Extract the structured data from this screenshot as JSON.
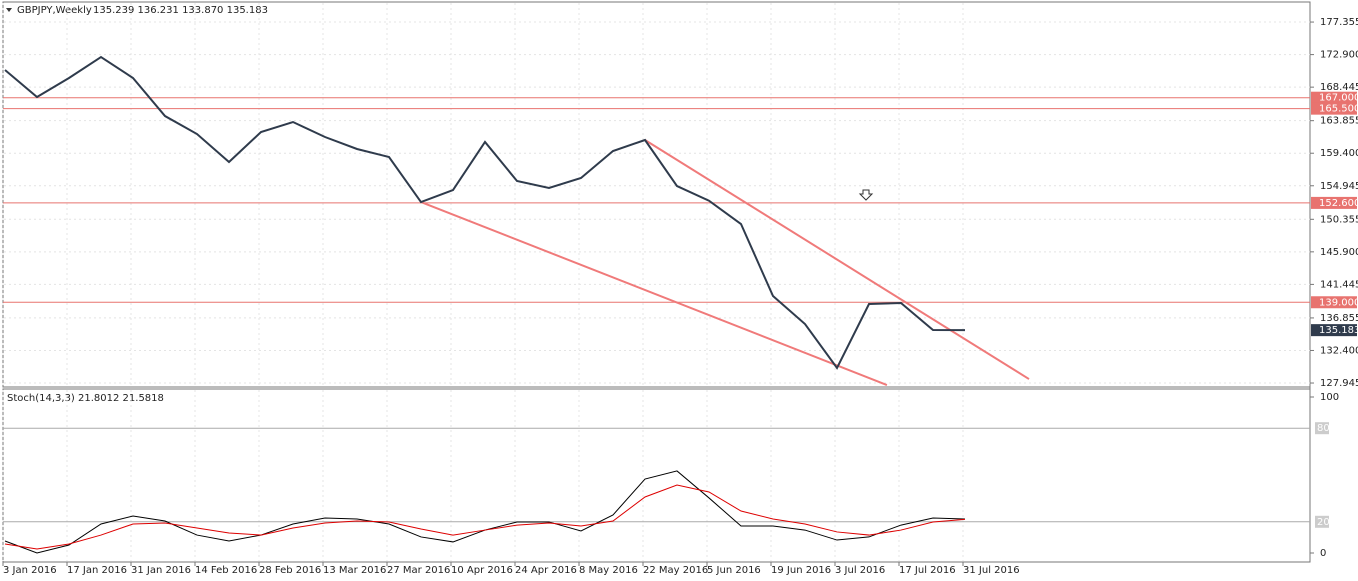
{
  "chart_data": [
    {
      "type": "line",
      "title": "GBPJPY,Weekly",
      "subtitle": "135.239 136.231 133.870 135.183",
      "categories": [
        "3 Jan 2016",
        null,
        "17 Jan 2016",
        null,
        "31 Jan 2016",
        null,
        "14 Feb 2016",
        null,
        "28 Feb 2016",
        null,
        "13 Mar 2016",
        null,
        "27 Mar 2016",
        null,
        "10 Apr 2016",
        null,
        "24 Apr 2016",
        null,
        "8 May 2016",
        null,
        "22 May 2016",
        null,
        "5 Jun 2016",
        null,
        "19 Jun 2016",
        null,
        "3 Jul 2016",
        null,
        "17 Jul 2016",
        null,
        "31 Jul 2016"
      ],
      "series": [
        {
          "color": "#2f3b4c",
          "values": [
            170.79,
            167.1,
            169.7,
            172.57,
            169.7,
            164.49,
            162.03,
            158.2,
            162.3,
            163.67,
            161.62,
            159.98,
            158.88,
            152.72,
            154.36,
            160.94,
            155.6,
            154.64,
            156.01,
            159.7,
            161.21,
            154.91,
            152.9,
            149.71,
            139.85,
            136.02,
            130.0,
            138.76,
            138.9,
            135.2,
            135.183
          ]
        }
      ],
      "ylim": [
        127.4,
        180.1
      ],
      "yticks": [
        177.355,
        {
          "value": 172.9,
          "label": "172.900"
        },
        168.445,
        163.855,
        {
          "value": 159.4,
          "label": "159.400"
        },
        154.945,
        150.355,
        {
          "value": 145.9,
          "label": "145.900"
        },
        141.445,
        136.855,
        {
          "value": 132.4,
          "label": "132.400"
        },
        127.945
      ],
      "levels": [
        {
          "value": 167,
          "label": "167.000"
        },
        {
          "value": 165.5,
          "label": "165.500"
        },
        {
          "value": 152.6,
          "label": "152.600"
        },
        {
          "value": 139,
          "label": "139.000"
        }
      ],
      "level_color": "#e8736f",
      "current_price": 135.183,
      "trendlines": [
        {
          "x": [
            20,
            32
          ],
          "y": [
            161.21,
            128.49
          ]
        },
        {
          "x": [
            13,
            27.56
          ],
          "y": [
            152.72,
            127.67
          ]
        }
      ],
      "trendline_color": "#f07a7a",
      "grid": true
    },
    {
      "type": "line",
      "title": "Stoch(14,3,3) 21.8012 21.5818",
      "series": [
        {
          "color": "#000000",
          "values": [
            7.7,
            0,
            5.1,
            18.6,
            23.7,
            20.5,
            11.5,
            7.7,
            11.5,
            18.6,
            22.4,
            21.8,
            18.6,
            10.3,
            7.1,
            14.7,
            19.9,
            19.9,
            14.1,
            24.4,
            47.4,
            52.6,
            35.3,
            17.3,
            17.3,
            14.7,
            8.3,
            10.3,
            17.9,
            22.4,
            21.8012
          ]
        },
        {
          "color": "#dd0000",
          "values": [
            5.8,
            2.6,
            5.8,
            11.5,
            18.6,
            19.2,
            16.0,
            12.8,
            11.5,
            16.0,
            19.2,
            20.5,
            19.9,
            15.4,
            11.5,
            14.7,
            17.9,
            19.2,
            17.3,
            20.5,
            35.9,
            43.6,
            39.1,
            26.9,
            21.8,
            18.6,
            13.5,
            11.5,
            14.7,
            19.9,
            21.5818
          ]
        }
      ],
      "ylim": [
        0,
        100
      ],
      "yticks": [
        0,
        100
      ],
      "levels": [
        20,
        80
      ]
    }
  ]
}
